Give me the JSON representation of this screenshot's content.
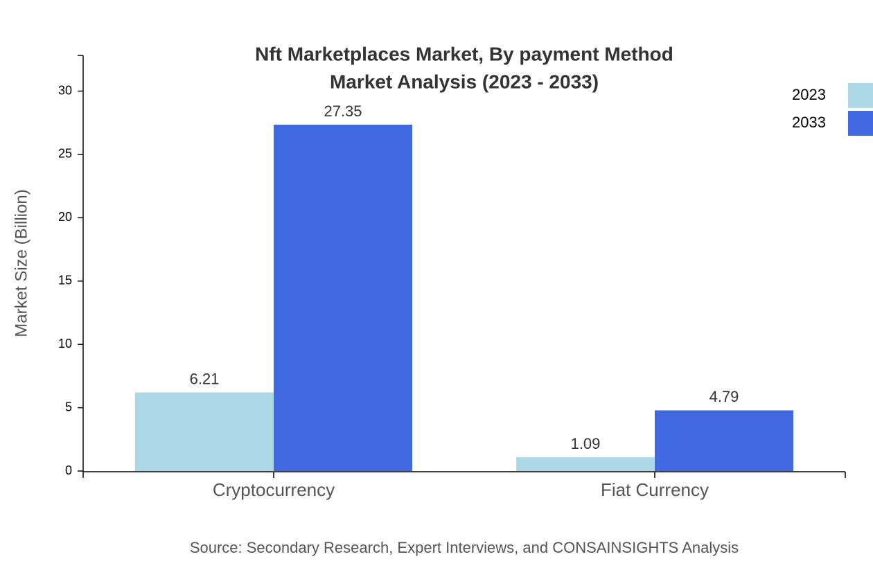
{
  "chart_data": {
    "type": "bar",
    "title": "Nft Marketplaces Market, By payment Method",
    "subtitle": "Market Analysis (2023 - 2033)",
    "y_label": "Market Size (Billion)",
    "source": "Source: Secondary Research, Expert Interviews, and CONSAINSIGHTS Analysis",
    "categories": [
      "Cryptocurrency",
      "Fiat Currency"
    ],
    "series": [
      {
        "name": "2023",
        "color": "#add8e6",
        "values": [
          6.21,
          1.09
        ]
      },
      {
        "name": "2033",
        "color": "#4169e1",
        "values": [
          27.35,
          4.79
        ]
      }
    ],
    "ylim": [
      0,
      32.82
    ],
    "yticks": [
      0,
      5,
      10,
      15,
      20,
      25,
      30
    ],
    "grid": false,
    "legend": "top-right"
  }
}
